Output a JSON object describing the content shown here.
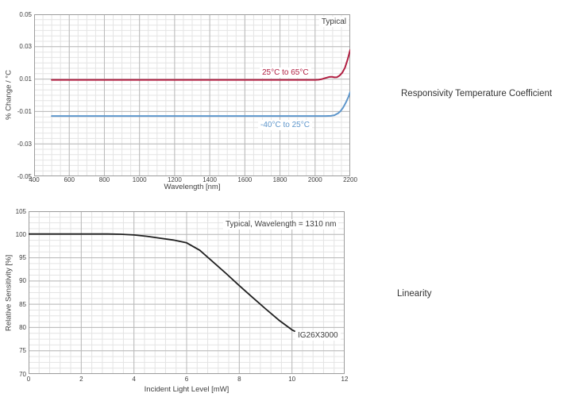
{
  "page": {
    "background": "#ffffff"
  },
  "colors": {
    "series_red": "#b01e41",
    "series_blue": "#5e96cb",
    "series_black": "#1f1f1f",
    "grid_minor": "#e4e4e4",
    "grid_major": "#b9b9b9",
    "axis_border": "#9c9c9c",
    "text": "#3d3d3d"
  },
  "side_labels": {
    "top": "Responsivity Temperature Coefficient",
    "bottom": "Linearity"
  },
  "chart_data": [
    {
      "type": "line",
      "title": "Responsivity Temperature Coefficient",
      "xlabel": "Wavelength [nm]",
      "ylabel": "% Change / °C",
      "xlim": [
        400,
        2200
      ],
      "ylim": [
        -0.05,
        0.05
      ],
      "xticks": [
        400,
        600,
        800,
        1000,
        1200,
        1400,
        1600,
        1800,
        2000,
        2200
      ],
      "yticks": [
        0.05,
        0.03,
        0.01,
        -0.01,
        -0.03,
        -0.05
      ],
      "ytick_labels": [
        "0.05",
        "0.03",
        "0.01",
        "-0.01",
        "-0.03",
        "-0.05"
      ],
      "x_minor_step": 50,
      "y_minor_step": 0.0033333,
      "grid": true,
      "legend_position": "inline-annotations",
      "annotations": [
        {
          "text": "Typical",
          "color": "#3d3d3d"
        },
        {
          "text": "25°C to 65°C",
          "color": "#b01e41"
        },
        {
          "text": "-40°C to 25°C",
          "color": "#5e96cb"
        }
      ],
      "series": [
        {
          "name": "25°C to 65°C",
          "color": "#b01e41",
          "width": 2,
          "x": [
            500,
            800,
            1200,
            1600,
            1900,
            2000,
            2020,
            2040,
            2060,
            2080,
            2095,
            2110,
            2125,
            2140,
            2155,
            2170,
            2185,
            2200
          ],
          "y": [
            0.0095,
            0.0095,
            0.0095,
            0.0095,
            0.0095,
            0.0095,
            0.0096,
            0.01,
            0.0107,
            0.0113,
            0.0114,
            0.0111,
            0.0112,
            0.0122,
            0.014,
            0.017,
            0.022,
            0.028
          ]
        },
        {
          "name": "-40°C to 25°C",
          "color": "#5e96cb",
          "width": 2,
          "x": [
            500,
            800,
            1200,
            1600,
            2000,
            2060,
            2090,
            2110,
            2130,
            2145,
            2160,
            2175,
            2190,
            2200
          ],
          "y": [
            -0.0128,
            -0.0128,
            -0.0128,
            -0.0128,
            -0.0128,
            -0.0128,
            -0.0127,
            -0.0123,
            -0.0112,
            -0.0098,
            -0.0075,
            -0.0045,
            -0.001,
            0.002
          ]
        }
      ]
    },
    {
      "type": "line",
      "title": "Linearity",
      "xlabel": "Incident Light Level [mW]",
      "ylabel": "Relative Sensitivity [%]",
      "xlim": [
        0,
        12
      ],
      "ylim": [
        70,
        105
      ],
      "xticks": [
        0,
        2,
        4,
        6,
        8,
        10,
        12
      ],
      "yticks": [
        105,
        100,
        95,
        90,
        85,
        80,
        75,
        70
      ],
      "ytick_labels": [
        "105",
        "100",
        "95",
        "90",
        "85",
        "80",
        "75",
        "70"
      ],
      "x_minor_step": 0.4,
      "y_minor_step": 1.25,
      "grid": true,
      "legend_position": "inline-annotations",
      "annotations": [
        {
          "text": "Typical, Wavelength = 1310 nm",
          "color": "#3d3d3d"
        },
        {
          "text": "IG26X3000",
          "color": "#3d3d3d"
        }
      ],
      "series": [
        {
          "name": "IG26X3000",
          "color": "#1f1f1f",
          "width": 1.8,
          "x": [
            0,
            1,
            2,
            3,
            3.5,
            4,
            4.5,
            5,
            5.5,
            6,
            6.5,
            7,
            7.5,
            8,
            8.5,
            9,
            9.5,
            10,
            10.1
          ],
          "y": [
            100.1,
            100.1,
            100.1,
            100.1,
            100.05,
            99.9,
            99.6,
            99.2,
            98.8,
            98.2,
            96.6,
            94.1,
            91.6,
            89.0,
            86.5,
            84.0,
            81.6,
            79.5,
            79.2
          ]
        }
      ]
    }
  ]
}
